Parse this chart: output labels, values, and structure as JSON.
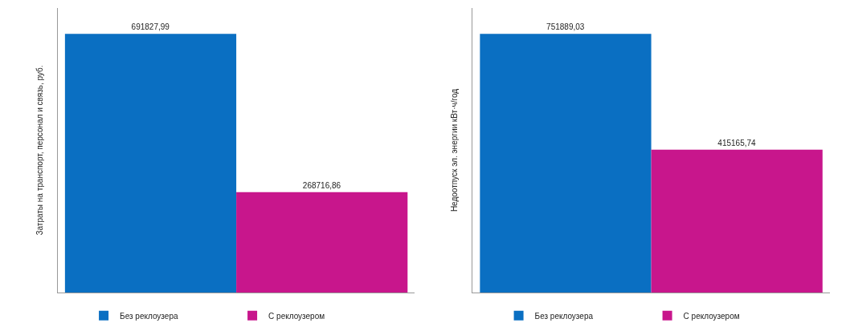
{
  "chart_data": [
    {
      "type": "bar",
      "ylabel": "Затраты на транспорт, персонал и связь, руб.",
      "categories": [
        null
      ],
      "legend": "bottom",
      "tick_labels": false,
      "series": [
        {
          "name": "Без реклоузера",
          "color": "#0a6fc2",
          "values": [
            691827.99
          ],
          "value_labels": [
            "691827,99"
          ]
        },
        {
          "name": "С реклоузером",
          "color": "#c8168c",
          "values": [
            268716.86
          ],
          "value_labels": [
            "268716,86"
          ]
        }
      ]
    },
    {
      "type": "bar",
      "ylabel": "Недоотпуск эл. энергии кВт·ч/год",
      "categories": [
        null
      ],
      "legend": "bottom",
      "tick_labels": false,
      "series": [
        {
          "name": "Без реклоузера",
          "color": "#0a6fc2",
          "values": [
            751889.03
          ],
          "value_labels": [
            "751889,03"
          ]
        },
        {
          "name": "С реклоузером",
          "color": "#c8168c",
          "values": [
            415165.74
          ],
          "value_labels": [
            "415165,74"
          ]
        }
      ]
    }
  ]
}
